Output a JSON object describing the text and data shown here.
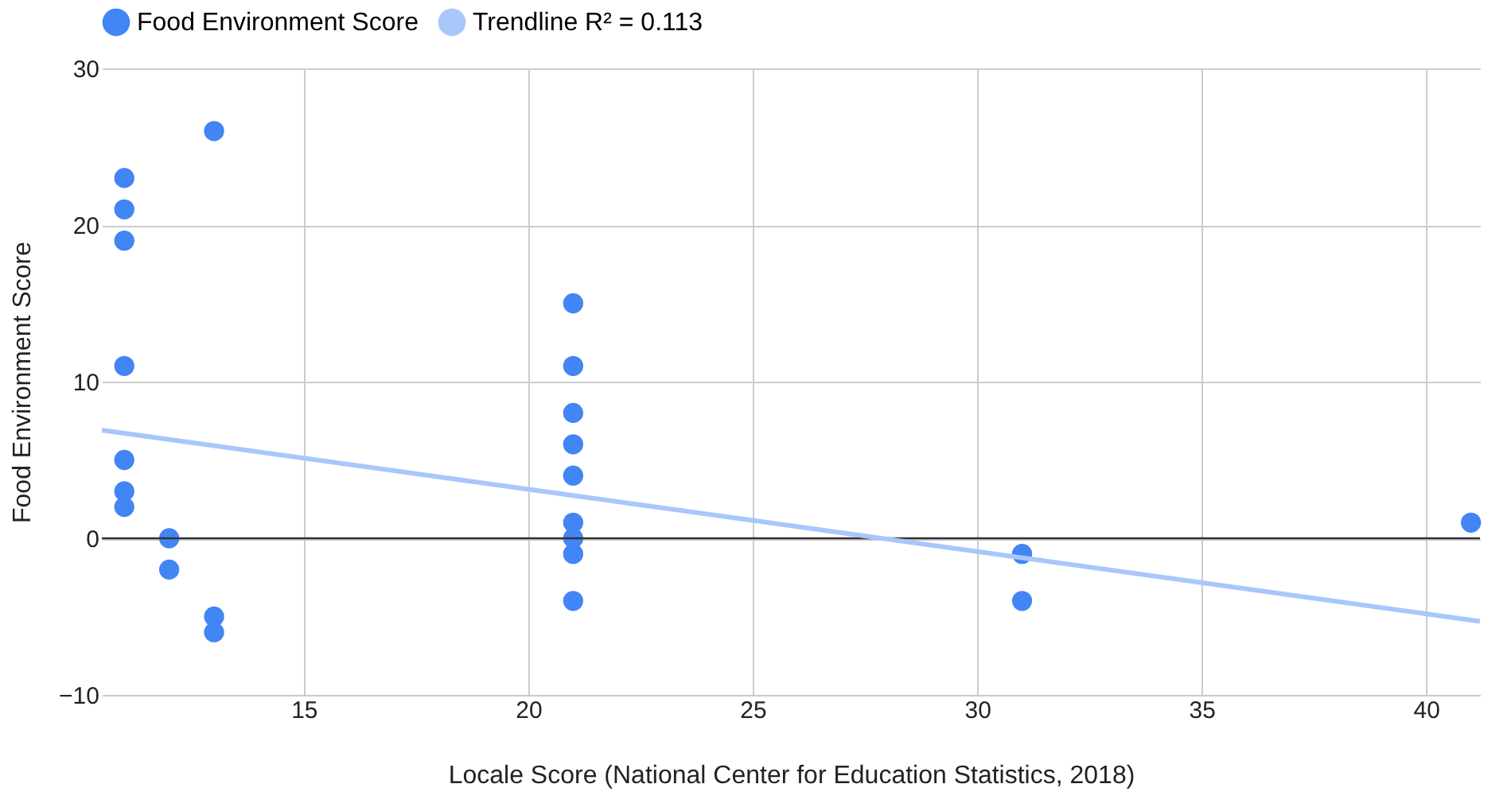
{
  "chart_data": {
    "type": "scatter",
    "xlabel": "Locale Score (National Center for Education Statistics, 2018)",
    "ylabel": "Food Environment Score",
    "x": [
      11,
      11,
      11,
      11,
      11,
      11,
      11,
      12,
      12,
      13,
      13,
      13,
      21,
      21,
      21,
      21,
      21,
      21,
      21,
      21,
      21,
      31,
      31,
      41
    ],
    "series": [
      {
        "name": "Food Environment Score",
        "marker": "circle",
        "color": "#4285f4",
        "values": [
          23,
          21,
          19,
          11,
          5,
          3,
          2,
          0,
          -2,
          26,
          -5,
          -6,
          15,
          11,
          8,
          6,
          4,
          1,
          0,
          -1,
          -4,
          -1,
          -4,
          1
        ]
      },
      {
        "name": "Trendline  R² = 0.113",
        "type": "line",
        "marker": "none",
        "color": "#a8c7fa",
        "x": [
          10.5,
          41.2
        ],
        "values": [
          6.9,
          -5.3
        ]
      }
    ],
    "xlim": [
      10.5,
      41.2
    ],
    "xticks": [
      15,
      20,
      25,
      30,
      35,
      40
    ],
    "ylim": [
      -10,
      30
    ],
    "yticks": [
      -10,
      0,
      10,
      20,
      30
    ],
    "ref_lines": [
      {
        "axis": "y",
        "value": 0,
        "color": "#333333"
      }
    ],
    "grid": true,
    "legend": "top"
  }
}
